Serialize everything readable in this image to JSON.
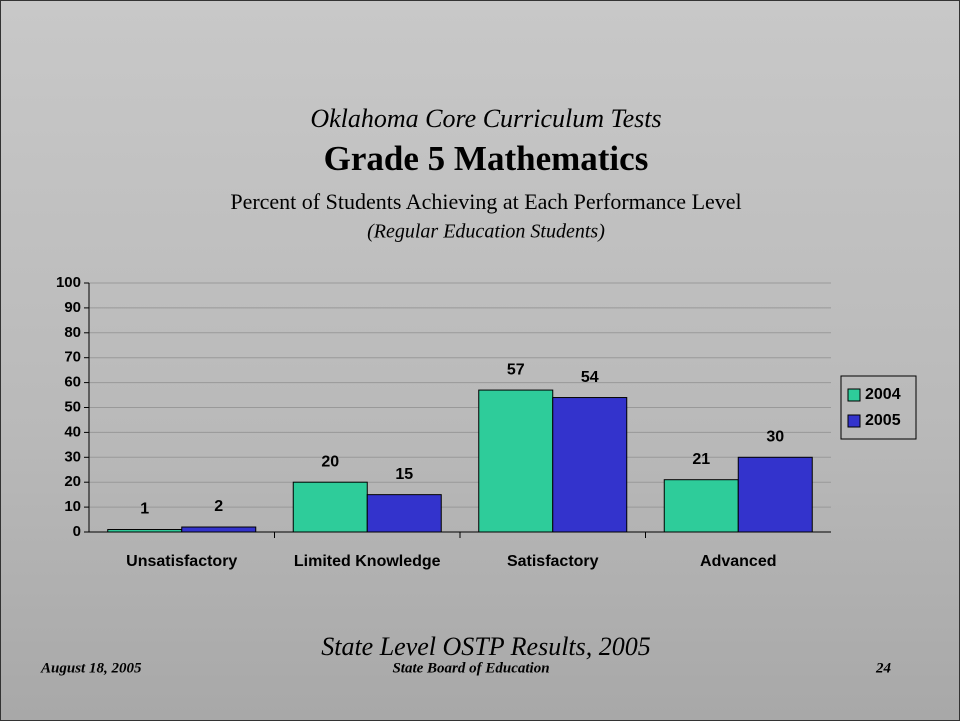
{
  "chart_data": {
    "type": "bar",
    "supertitle": "Oklahoma Core Curriculum Tests",
    "title": "Grade 5 Mathematics",
    "subtitle": "Percent of Students Achieving at Each Performance Level",
    "note": "(Regular Education Students)",
    "categories": [
      "Unsatisfactory",
      "Limited Knowledge",
      "Satisfactory",
      "Advanced"
    ],
    "series": [
      {
        "name": "2004",
        "color": "#2ecc9a",
        "values": [
          1,
          20,
          57,
          21
        ]
      },
      {
        "name": "2005",
        "color": "#3333cc",
        "values": [
          2,
          15,
          54,
          30
        ]
      }
    ],
    "ylim": [
      0,
      100
    ],
    "yticks": [
      0,
      10,
      20,
      30,
      40,
      50,
      60,
      70,
      80,
      90,
      100
    ],
    "grid": true,
    "legend": "right"
  },
  "footer": {
    "caption": "State Level OSTP Results, 2005",
    "date": "August 18, 2005",
    "organization": "State Board of Education",
    "page": "24"
  }
}
